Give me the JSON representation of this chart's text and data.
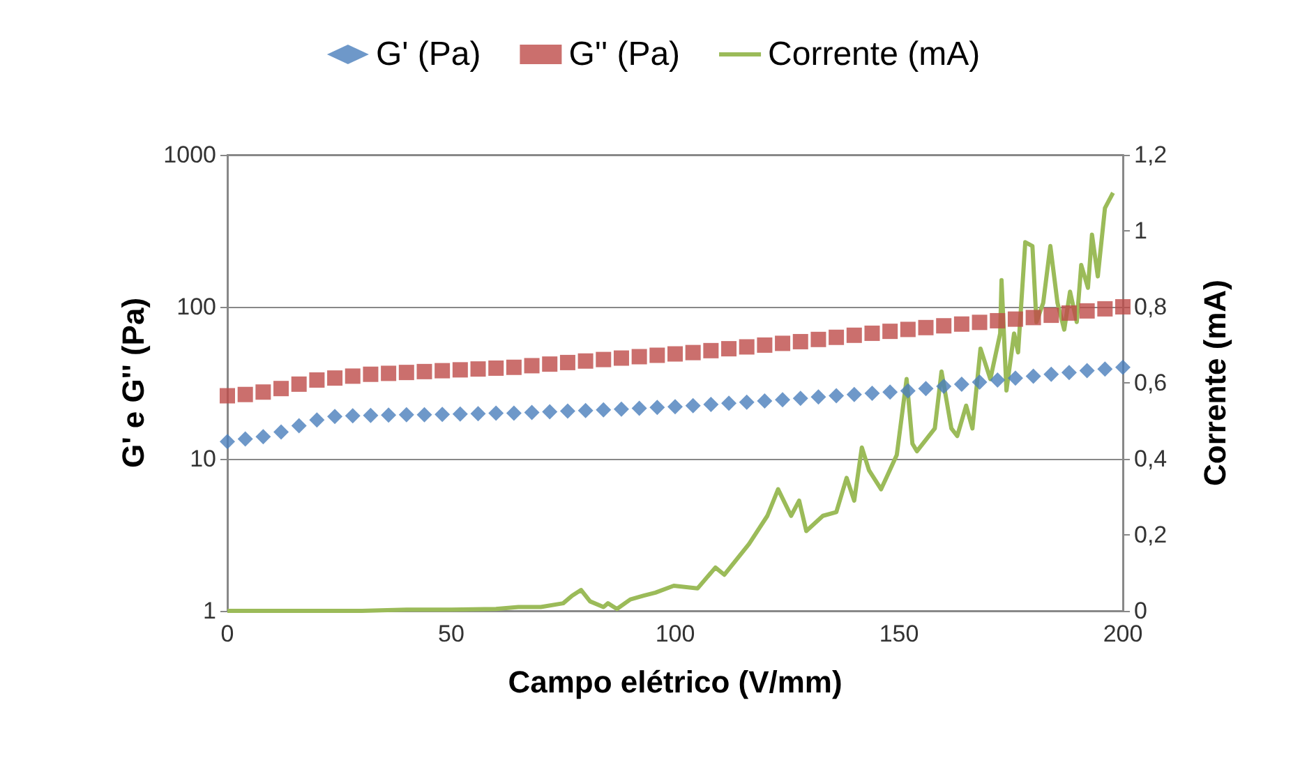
{
  "chart_data": {
    "type": "scatter",
    "xlabel": "Campo elétrico (V/mm)",
    "ylabel": "G' e G'' (Pa)",
    "y2label": "Corrente (mA)",
    "log": "y",
    "grid": "y",
    "legend": "top",
    "xlim": [
      0,
      200
    ],
    "xticks": [
      0,
      50,
      100,
      150,
      200
    ],
    "ylim": [
      1,
      1000
    ],
    "yticks": [
      1,
      10,
      100,
      1000
    ],
    "y2lim": [
      0,
      1.2
    ],
    "y2ticks": [
      {
        "value": 0,
        "label": "0"
      },
      {
        "value": 0.2,
        "label": "0,2"
      },
      {
        "value": 0.4,
        "label": "0,4"
      },
      {
        "value": 0.6,
        "label": "0,6"
      },
      {
        "value": 0.8,
        "label": "0,8"
      },
      {
        "value": 1,
        "label": "1"
      },
      {
        "value": 1.2,
        "label": "1,2"
      }
    ],
    "series": [
      {
        "name": "G' (Pa)",
        "color": "#4a7ebb",
        "marker": "diamond",
        "x": [
          0,
          4,
          8,
          12,
          16,
          20,
          24,
          28,
          32,
          36,
          40,
          44,
          48,
          52,
          56,
          60,
          64,
          68,
          72,
          76,
          80,
          84,
          88,
          92,
          96,
          100,
          104,
          108,
          112,
          116,
          120,
          124,
          128,
          132,
          136,
          140,
          144,
          148,
          152,
          156,
          160,
          164,
          168,
          172,
          176,
          180,
          184,
          188,
          192,
          196,
          200
        ],
        "values": [
          13,
          13.5,
          14,
          15,
          16.5,
          18,
          19,
          19.2,
          19.3,
          19.4,
          19.5,
          19.5,
          19.6,
          19.7,
          19.8,
          20,
          20,
          20.2,
          20.4,
          20.6,
          20.8,
          21,
          21.2,
          21.5,
          21.8,
          22,
          22.4,
          22.8,
          23.2,
          23.6,
          24,
          24.5,
          25,
          25.5,
          26,
          26.5,
          27,
          27.5,
          28,
          29,
          30,
          31,
          32,
          33,
          34,
          35,
          36,
          37,
          38,
          39,
          40
        ]
      },
      {
        "name": "G'' (Pa)",
        "color": "#be4b48",
        "marker": "square",
        "x": [
          0,
          4,
          8,
          12,
          16,
          20,
          24,
          28,
          32,
          36,
          40,
          44,
          48,
          52,
          56,
          60,
          64,
          68,
          72,
          76,
          80,
          84,
          88,
          92,
          96,
          100,
          104,
          108,
          112,
          116,
          120,
          124,
          128,
          132,
          136,
          140,
          144,
          148,
          152,
          156,
          160,
          164,
          168,
          172,
          176,
          180,
          184,
          188,
          192,
          196,
          200
        ],
        "values": [
          26,
          26.5,
          27.5,
          29,
          31,
          33,
          34,
          35,
          36,
          36.5,
          37,
          37.5,
          38,
          38.5,
          39,
          39.5,
          40,
          41,
          42,
          43,
          44,
          45,
          46,
          47,
          48,
          49,
          50,
          51.5,
          53,
          54.5,
          56,
          57.5,
          59,
          61,
          63,
          65,
          67,
          69,
          71,
          73,
          75,
          77,
          79,
          81,
          83,
          85,
          88,
          91,
          94,
          97,
          100
        ]
      },
      {
        "name": "Corrente (mA)",
        "type": "line",
        "axis": "y2",
        "color": "#9bbb59",
        "marker": "none",
        "x": [
          0,
          10,
          20,
          30,
          40,
          50,
          60,
          65,
          70,
          75,
          77,
          79,
          81,
          84,
          85,
          87,
          90,
          93,
          95.6,
          99.7,
          105,
          109,
          111,
          116.5,
          120.6,
          123,
          125.9,
          127.7,
          129.3,
          133,
          136,
          138.3,
          140,
          141.7,
          143.3,
          146,
          149.5,
          151.7,
          153,
          154,
          158,
          159.5,
          161.7,
          163,
          165,
          166.4,
          168.2,
          170.4,
          172.6,
          172.9,
          174,
          175.7,
          176.6,
          178.2,
          179.8,
          180.7,
          182.2,
          183.8,
          185.4,
          186.9,
          188.2,
          189.7,
          190.7,
          192.2,
          193.1,
          194.4,
          196,
          196.9,
          197.8
        ],
        "values": [
          0,
          0,
          0,
          0,
          0.003,
          0.003,
          0.005,
          0.01,
          0.01,
          0.02,
          0.04,
          0.055,
          0.025,
          0.01,
          0.02,
          0.005,
          0.03,
          0.04,
          0.048,
          0.066,
          0.059,
          0.114,
          0.095,
          0.176,
          0.25,
          0.32,
          0.25,
          0.29,
          0.21,
          0.25,
          0.26,
          0.35,
          0.29,
          0.43,
          0.37,
          0.32,
          0.41,
          0.61,
          0.44,
          0.42,
          0.48,
          0.63,
          0.48,
          0.46,
          0.54,
          0.48,
          0.69,
          0.61,
          0.73,
          0.87,
          0.58,
          0.73,
          0.68,
          0.97,
          0.96,
          0.76,
          0.81,
          0.96,
          0.81,
          0.74,
          0.84,
          0.76,
          0.91,
          0.85,
          0.99,
          0.88,
          1.06,
          1.08,
          1.1
        ]
      }
    ]
  }
}
